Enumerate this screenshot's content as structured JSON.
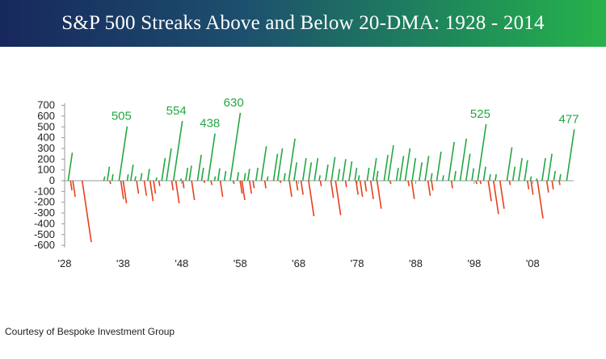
{
  "chart_data": {
    "type": "line",
    "title": "S&P 500 Streaks Above and Below 20-DMA: 1928 - 2014",
    "xlabel": "",
    "ylabel": "",
    "x_ticks": [
      "'28",
      "'38",
      "'48",
      "'58",
      "'68",
      "'78",
      "'88",
      "'98",
      "'08"
    ],
    "x_tick_years": [
      1928,
      1938,
      1948,
      1958,
      1968,
      1978,
      1988,
      1998,
      2008
    ],
    "xlim": [
      1928,
      2015
    ],
    "y_ticks": [
      700,
      600,
      500,
      400,
      300,
      200,
      100,
      0,
      -100,
      -200,
      -300,
      -400,
      -500,
      -600
    ],
    "ylim": [
      -620,
      720
    ],
    "grid": false,
    "legend": "none",
    "colors": {
      "above": "#22a843",
      "below": "#e8401c",
      "axis": "#999999"
    },
    "series": [
      {
        "key": "above",
        "streaks": [
          [
            1928.6,
            260
          ],
          [
            1934.7,
            40
          ],
          [
            1935.3,
            130
          ],
          [
            1936.1,
            60
          ],
          [
            1937.3,
            505
          ],
          [
            1938.7,
            60
          ],
          [
            1939.3,
            150
          ],
          [
            1940.0,
            40
          ],
          [
            1941.0,
            70
          ],
          [
            1942.2,
            110
          ],
          [
            1943.6,
            30
          ],
          [
            1944.6,
            210
          ],
          [
            1945.4,
            300
          ],
          [
            1946.6,
            554
          ],
          [
            1947.8,
            20
          ],
          [
            1948.7,
            120
          ],
          [
            1949.3,
            140
          ],
          [
            1950.7,
            240
          ],
          [
            1951.4,
            120
          ],
          [
            1952.5,
            438
          ],
          [
            1953.6,
            40
          ],
          [
            1954.2,
            115
          ],
          [
            1955.3,
            90
          ],
          [
            1956.3,
            630
          ],
          [
            1957.5,
            80
          ],
          [
            1958.7,
            70
          ],
          [
            1959.3,
            110
          ],
          [
            1960.7,
            120
          ],
          [
            1961.6,
            320
          ],
          [
            1962.6,
            40
          ],
          [
            1963.7,
            250
          ],
          [
            1964.4,
            300
          ],
          [
            1965.5,
            70
          ],
          [
            1966.3,
            390
          ],
          [
            1967.2,
            170
          ],
          [
            1968.7,
            210
          ],
          [
            1969.7,
            170
          ],
          [
            1970.7,
            210
          ],
          [
            1971.5,
            50
          ],
          [
            1972.6,
            150
          ],
          [
            1973.6,
            220
          ],
          [
            1974.7,
            110
          ],
          [
            1975.5,
            200
          ],
          [
            1976.6,
            180
          ],
          [
            1977.6,
            120
          ],
          [
            1978.2,
            50
          ],
          [
            1979.7,
            120
          ],
          [
            1980.7,
            210
          ],
          [
            1981.3,
            90
          ],
          [
            1982.6,
            240
          ],
          [
            1983.3,
            330
          ],
          [
            1984.7,
            120
          ],
          [
            1985.3,
            230
          ],
          [
            1986.2,
            300
          ],
          [
            1987.4,
            210
          ],
          [
            1988.6,
            170
          ],
          [
            1989.6,
            230
          ],
          [
            1990.6,
            70
          ],
          [
            1991.6,
            270
          ],
          [
            1992.6,
            50
          ],
          [
            1993.6,
            360
          ],
          [
            1994.6,
            90
          ],
          [
            1995.6,
            390
          ],
          [
            1996.6,
            250
          ],
          [
            1997.6,
            115
          ],
          [
            1998.6,
            525
          ],
          [
            1999.6,
            130
          ],
          [
            2000.6,
            60
          ],
          [
            2001.6,
            60
          ],
          [
            2003.6,
            310
          ],
          [
            2004.6,
            130
          ],
          [
            2005.6,
            210
          ],
          [
            2006.6,
            190
          ],
          [
            2007.6,
            40
          ],
          [
            2008.6,
            20
          ],
          [
            2009.6,
            210
          ],
          [
            2010.6,
            250
          ],
          [
            2011.6,
            90
          ],
          [
            2012.6,
            60
          ],
          [
            2013.8,
            477
          ]
        ]
      },
      {
        "key": "below",
        "streaks": [
          [
            1929.0,
            -90
          ],
          [
            1929.4,
            -150
          ],
          [
            1931.0,
            -570
          ],
          [
            1935.7,
            -30
          ],
          [
            1937.6,
            -170
          ],
          [
            1938.0,
            -210
          ],
          [
            1940.3,
            -120
          ],
          [
            1941.6,
            -140
          ],
          [
            1942.6,
            -190
          ],
          [
            1943.2,
            -120
          ],
          [
            1944.1,
            -50
          ],
          [
            1946.3,
            -90
          ],
          [
            1947.0,
            -210
          ],
          [
            1948.2,
            -70
          ],
          [
            1949.7,
            -180
          ],
          [
            1951.8,
            -20
          ],
          [
            1953.0,
            -40
          ],
          [
            1954.6,
            -150
          ],
          [
            1956.8,
            -30
          ],
          [
            1958.0,
            -120
          ],
          [
            1958.3,
            -180
          ],
          [
            1959.6,
            -120
          ],
          [
            1960.2,
            -70
          ],
          [
            1962.2,
            -70
          ],
          [
            1964.8,
            -20
          ],
          [
            1966.4,
            -150
          ],
          [
            1967.6,
            -90
          ],
          [
            1968.4,
            -130
          ],
          [
            1969.7,
            -330
          ],
          [
            1971.7,
            -50
          ],
          [
            1973.5,
            -160
          ],
          [
            1974.3,
            -320
          ],
          [
            1976.0,
            -60
          ],
          [
            1977.8,
            -130
          ],
          [
            1978.5,
            -150
          ],
          [
            1979.3,
            -100
          ],
          [
            1980.3,
            -170
          ],
          [
            1981.4,
            -260
          ],
          [
            1983.6,
            -30
          ],
          [
            1986.7,
            -50
          ],
          [
            1987.3,
            -170
          ],
          [
            1990.1,
            -140
          ],
          [
            1990.7,
            -90
          ],
          [
            1994.1,
            -70
          ],
          [
            1998.3,
            -30
          ],
          [
            1999.0,
            -30
          ],
          [
            2000.4,
            -190
          ],
          [
            2001.3,
            -310
          ],
          [
            2002.4,
            -260
          ],
          [
            2004.0,
            -40
          ],
          [
            2007.1,
            -80
          ],
          [
            2007.7,
            -130
          ],
          [
            2008.8,
            -350
          ],
          [
            2010.4,
            -110
          ],
          [
            2011.3,
            -80
          ],
          [
            2012.5,
            -40
          ]
        ]
      }
    ],
    "annotations": [
      {
        "text": "505",
        "x": 1937.3,
        "y": 505
      },
      {
        "text": "554",
        "x": 1946.6,
        "y": 554
      },
      {
        "text": "438",
        "x": 1952.5,
        "y": 438
      },
      {
        "text": "630",
        "x": 1956.3,
        "y": 630
      },
      {
        "text": "525",
        "x": 1998.6,
        "y": 525
      },
      {
        "text": "477",
        "x": 2013.8,
        "y": 477
      }
    ]
  },
  "footer": {
    "credit": "Courtesy of Bespoke Investment Group"
  }
}
